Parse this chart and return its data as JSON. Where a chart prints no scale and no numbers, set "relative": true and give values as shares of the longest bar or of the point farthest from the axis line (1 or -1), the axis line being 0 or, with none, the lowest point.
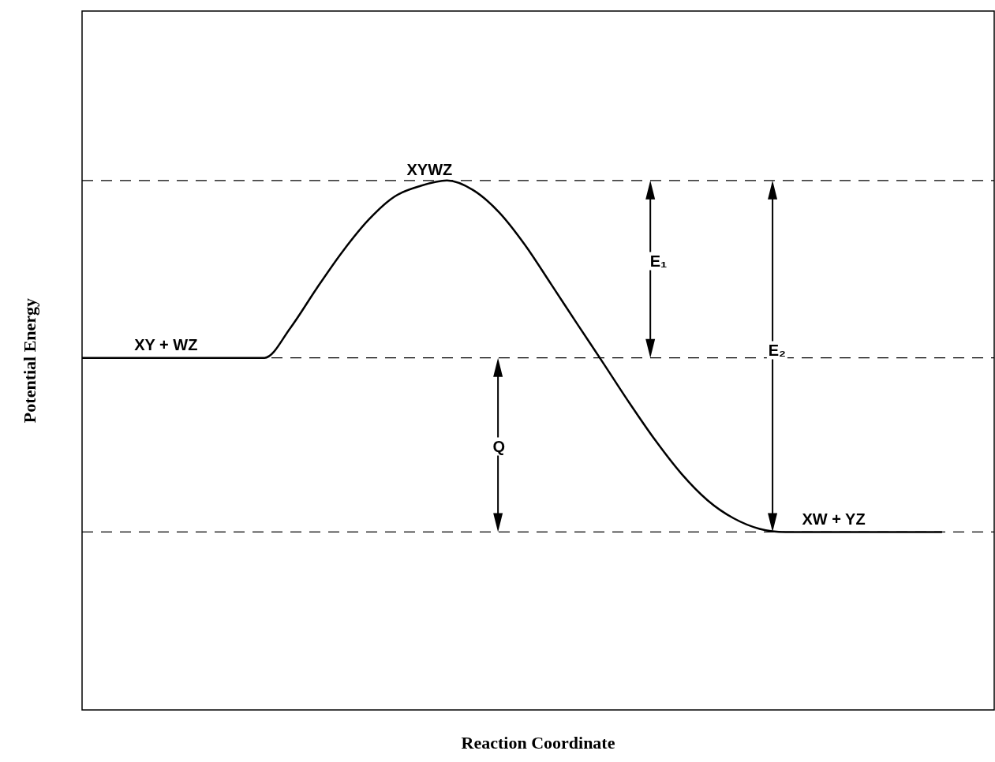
{
  "chart_data": {
    "type": "line",
    "relative": true,
    "xlabel": "Reaction Coordinate",
    "ylabel": "Potential Energy",
    "categories": [
      null,
      null,
      null,
      null,
      null,
      null,
      null,
      null,
      null,
      null,
      null,
      null,
      null,
      null,
      null,
      null,
      null,
      null,
      null,
      null,
      null,
      null,
      null,
      null,
      null,
      null,
      null,
      null,
      null,
      null,
      null,
      null,
      null,
      null,
      null,
      null
    ],
    "series": [
      {
        "color": "#000000",
        "values": [
          0.665,
          0.665,
          0.665,
          0.665,
          0.665,
          0.665,
          0.665,
          0.665,
          0.722,
          0.796,
          0.866,
          0.926,
          0.97,
          0.99,
          1,
          0.982,
          0.94,
          0.878,
          0.804,
          0.729,
          0.655,
          0.58,
          0.509,
          0.446,
          0.396,
          0.362,
          0.342,
          0.336,
          0.336,
          0.336,
          0.336,
          0.336,
          0.336,
          0.336,
          null,
          null
        ]
      }
    ],
    "ref_lines": [
      {
        "axis": "y",
        "value": 1,
        "line_style": "dashed",
        "color": "#000000"
      },
      {
        "axis": "y",
        "value": 0.665,
        "line_style": "dashed",
        "color": "#000000"
      },
      {
        "axis": "y",
        "value": 0.336,
        "line_style": "dashed",
        "color": "#000000"
      }
    ],
    "annotations": [
      "XYWZ",
      "XY + WZ",
      "XW + YZ",
      "E₁",
      "E₂",
      "Q"
    ],
    "marker": "none",
    "line_style": "solid",
    "legend": false
  }
}
